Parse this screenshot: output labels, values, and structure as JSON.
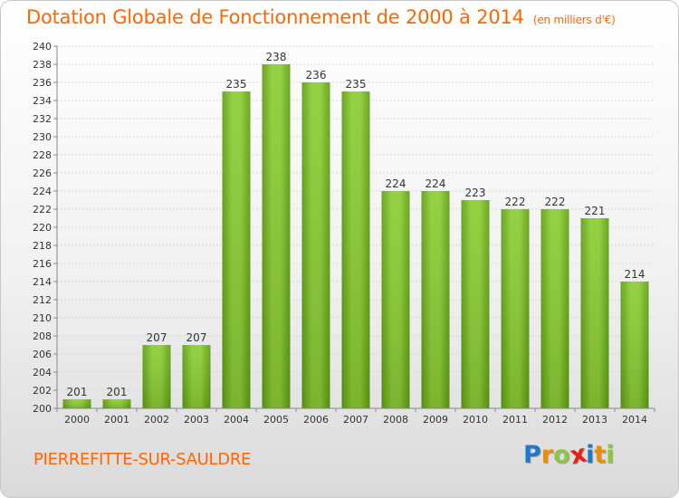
{
  "title": "Dotation Globale de Fonctionnement de 2000 à 2014",
  "unit_note": "(en milliers d'€)",
  "place": "PIERREFITTE-SUR-SAULDRE",
  "logo": {
    "text": "Proxiti",
    "letters": [
      {
        "ch": "P",
        "color": "#1f78c8"
      },
      {
        "ch": "r",
        "color": "#f08c00"
      },
      {
        "ch": "o",
        "color": "#8cc63f"
      },
      {
        "ch": "x",
        "color": "#e8200f"
      },
      {
        "ch": "i",
        "color": "#1f78c8"
      },
      {
        "ch": "t",
        "color": "#f08c00"
      },
      {
        "ch": "i",
        "color": "#8cc63f"
      }
    ]
  },
  "chart_data": {
    "type": "bar",
    "title": "Dotation Globale de Fonctionnement de 2000 à 2014",
    "xlabel": "",
    "ylabel": "",
    "categories": [
      "2000",
      "2001",
      "2002",
      "2003",
      "2004",
      "2005",
      "2006",
      "2007",
      "2008",
      "2009",
      "2010",
      "2011",
      "2012",
      "2013",
      "2014"
    ],
    "values": [
      201,
      201,
      207,
      207,
      235,
      238,
      236,
      235,
      224,
      224,
      223,
      222,
      222,
      221,
      214
    ],
    "ylim": [
      200,
      240
    ],
    "yticks": [
      200,
      202,
      204,
      206,
      208,
      210,
      212,
      214,
      216,
      218,
      220,
      222,
      224,
      226,
      228,
      230,
      232,
      234,
      236,
      238,
      240
    ],
    "grid": true,
    "bar_color": "#7dbf2a"
  }
}
